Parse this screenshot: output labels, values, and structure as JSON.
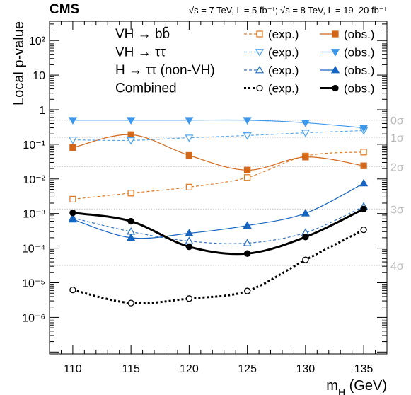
{
  "header": {
    "experiment": "CMS",
    "energy_lumi": "√s = 7 TeV, L = 5 fb⁻¹; √s = 8 TeV, L = 19–20 fb⁻¹"
  },
  "chart_data": {
    "type": "line",
    "xlabel": "m_H (GeV)",
    "ylabel": "Local p-value",
    "xlim": [
      108,
      137
    ],
    "ylim": [
      1.5e-07,
      300
    ],
    "yscale": "log",
    "x_ticks": [
      110,
      115,
      120,
      125,
      130,
      135
    ],
    "y_ticks": [
      {
        "value": 1e-06,
        "label": "10⁻⁶"
      },
      {
        "value": 1e-05,
        "label": "10⁻⁵"
      },
      {
        "value": 0.0001,
        "label": "10⁻⁴"
      },
      {
        "value": 0.001,
        "label": "10⁻³"
      },
      {
        "value": 0.01,
        "label": "10⁻²"
      },
      {
        "value": 0.1,
        "label": "10⁻¹"
      },
      {
        "value": 1,
        "label": "1"
      },
      {
        "value": 10,
        "label": "10"
      },
      {
        "value": 100,
        "label": "10²"
      }
    ],
    "sigma_lines": [
      {
        "label": "0σ",
        "p": 0.5
      },
      {
        "label": "1σ",
        "p": 0.1587
      },
      {
        "label": "2σ",
        "p": 0.02275
      },
      {
        "label": "3σ",
        "p": 0.00135
      },
      {
        "label": "4σ",
        "p": 3.17e-05
      }
    ],
    "x": [
      110,
      115,
      120,
      125,
      130,
      135
    ],
    "legend_position": "top-right",
    "series": [
      {
        "name": "VH → bb̄ (exp.)",
        "group": "VH → bb̄",
        "kind": "exp.",
        "color": "#e07b27",
        "dashed": true,
        "marker": "open-square",
        "values": [
          0.0026,
          0.0039,
          0.0058,
          0.011,
          0.046,
          0.06
        ]
      },
      {
        "name": "VH → bb̄ (obs.)",
        "group": "VH → bb̄",
        "kind": "obs.",
        "color": "#d4681a",
        "dashed": false,
        "marker": "filled-square",
        "values": [
          0.08,
          0.19,
          0.048,
          0.018,
          0.043,
          0.024
        ]
      },
      {
        "name": "VH → ττ (exp.)",
        "group": "VH → ττ",
        "kind": "exp.",
        "color": "#57a8ee",
        "dashed": true,
        "marker": "open-triangle-down",
        "values": [
          0.135,
          0.13,
          0.155,
          0.18,
          0.215,
          0.25
        ]
      },
      {
        "name": "VH → ττ (obs.)",
        "group": "VH → ττ",
        "kind": "obs.",
        "color": "#3d98ec",
        "dashed": false,
        "marker": "filled-triangle-down",
        "values": [
          0.5,
          0.5,
          0.5,
          0.5,
          0.42,
          0.3
        ]
      },
      {
        "name": "H → ττ (non-VH) (exp.)",
        "group": "H → ττ (non-VH)",
        "kind": "exp.",
        "color": "#2f74c7",
        "dashed": true,
        "marker": "open-triangle-up",
        "values": [
          0.00075,
          0.0003,
          0.00016,
          0.00014,
          0.00028,
          0.0016
        ]
      },
      {
        "name": "H → ττ (non-VH) (obs.)",
        "group": "H → ττ (non-VH)",
        "kind": "obs.",
        "color": "#1565c0",
        "dashed": false,
        "marker": "filled-triangle-up",
        "values": [
          0.00068,
          0.0002,
          0.00027,
          0.00045,
          0.00102,
          0.0075
        ]
      },
      {
        "name": "Combined (exp.)",
        "group": "Combined",
        "kind": "exp.",
        "color": "#000000",
        "dashed": true,
        "marker": "open-circle",
        "values": [
          6.2e-06,
          2.6e-06,
          3.5e-06,
          5.8e-06,
          4.6e-05,
          0.00034
        ]
      },
      {
        "name": "Combined (obs.)",
        "group": "Combined",
        "kind": "obs.",
        "color": "#000000",
        "dashed": false,
        "marker": "filled-circle",
        "values": [
          0.00105,
          0.0006,
          0.00011,
          7e-05,
          0.00021,
          0.00135
        ]
      }
    ]
  }
}
